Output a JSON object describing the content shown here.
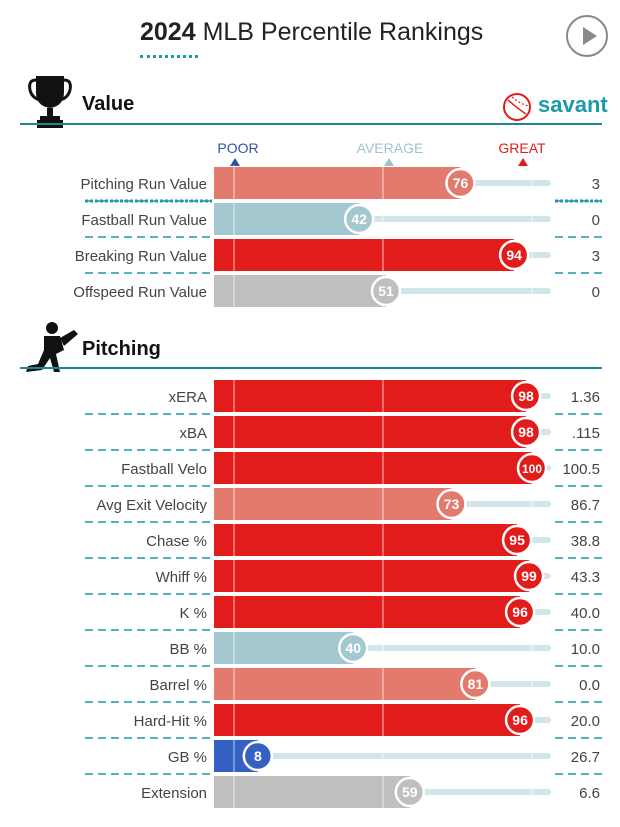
{
  "header": {
    "title_year": "2024",
    "title_rest": " MLB Percentile Rankings"
  },
  "icons": {
    "play": "play-icon",
    "trophy": "trophy-icon",
    "pitcher": "pitcher-icon",
    "savant_logo": "baseball-icon"
  },
  "brand": {
    "name": "savant"
  },
  "scale": {
    "poor": "POOR",
    "average": "AVERAGE",
    "great": "GREAT"
  },
  "colors": {
    "great_red": "#e21b1b",
    "good_salmon": "#e37a6e",
    "average_gray": "#bfbfbf",
    "below_teal": "#a4c8d0",
    "poor_blue": "#3560c4",
    "accent_teal": "#1b9aa8"
  },
  "sections": {
    "value": "Value",
    "pitching": "Pitching"
  },
  "chart_data": [
    {
      "type": "bar",
      "orientation": "horizontal",
      "title": "Value",
      "categories": [
        "Pitching Run Value",
        "Fastball Run Value",
        "Breaking Run Value",
        "Offspeed Run Value"
      ],
      "percentiles": [
        76,
        42,
        94,
        51
      ],
      "values": [
        "3",
        "0",
        "3",
        "0"
      ],
      "xlim": [
        0,
        100
      ]
    },
    {
      "type": "bar",
      "orientation": "horizontal",
      "title": "Pitching",
      "categories": [
        "xERA",
        "xBA",
        "Fastball Velo",
        "Avg Exit Velocity",
        "Chase %",
        "Whiff %",
        "K %",
        "BB %",
        "Barrel %",
        "Hard-Hit %",
        "GB %",
        "Extension"
      ],
      "percentiles": [
        98,
        98,
        100,
        73,
        95,
        99,
        96,
        40,
        81,
        96,
        8,
        59
      ],
      "values": [
        "1.36",
        ".115",
        "100.5",
        "86.7",
        "38.8",
        "43.3",
        "40.0",
        "10.0",
        "0.0",
        "20.0",
        "26.7",
        "6.6"
      ],
      "xlim": [
        0,
        100
      ]
    }
  ]
}
